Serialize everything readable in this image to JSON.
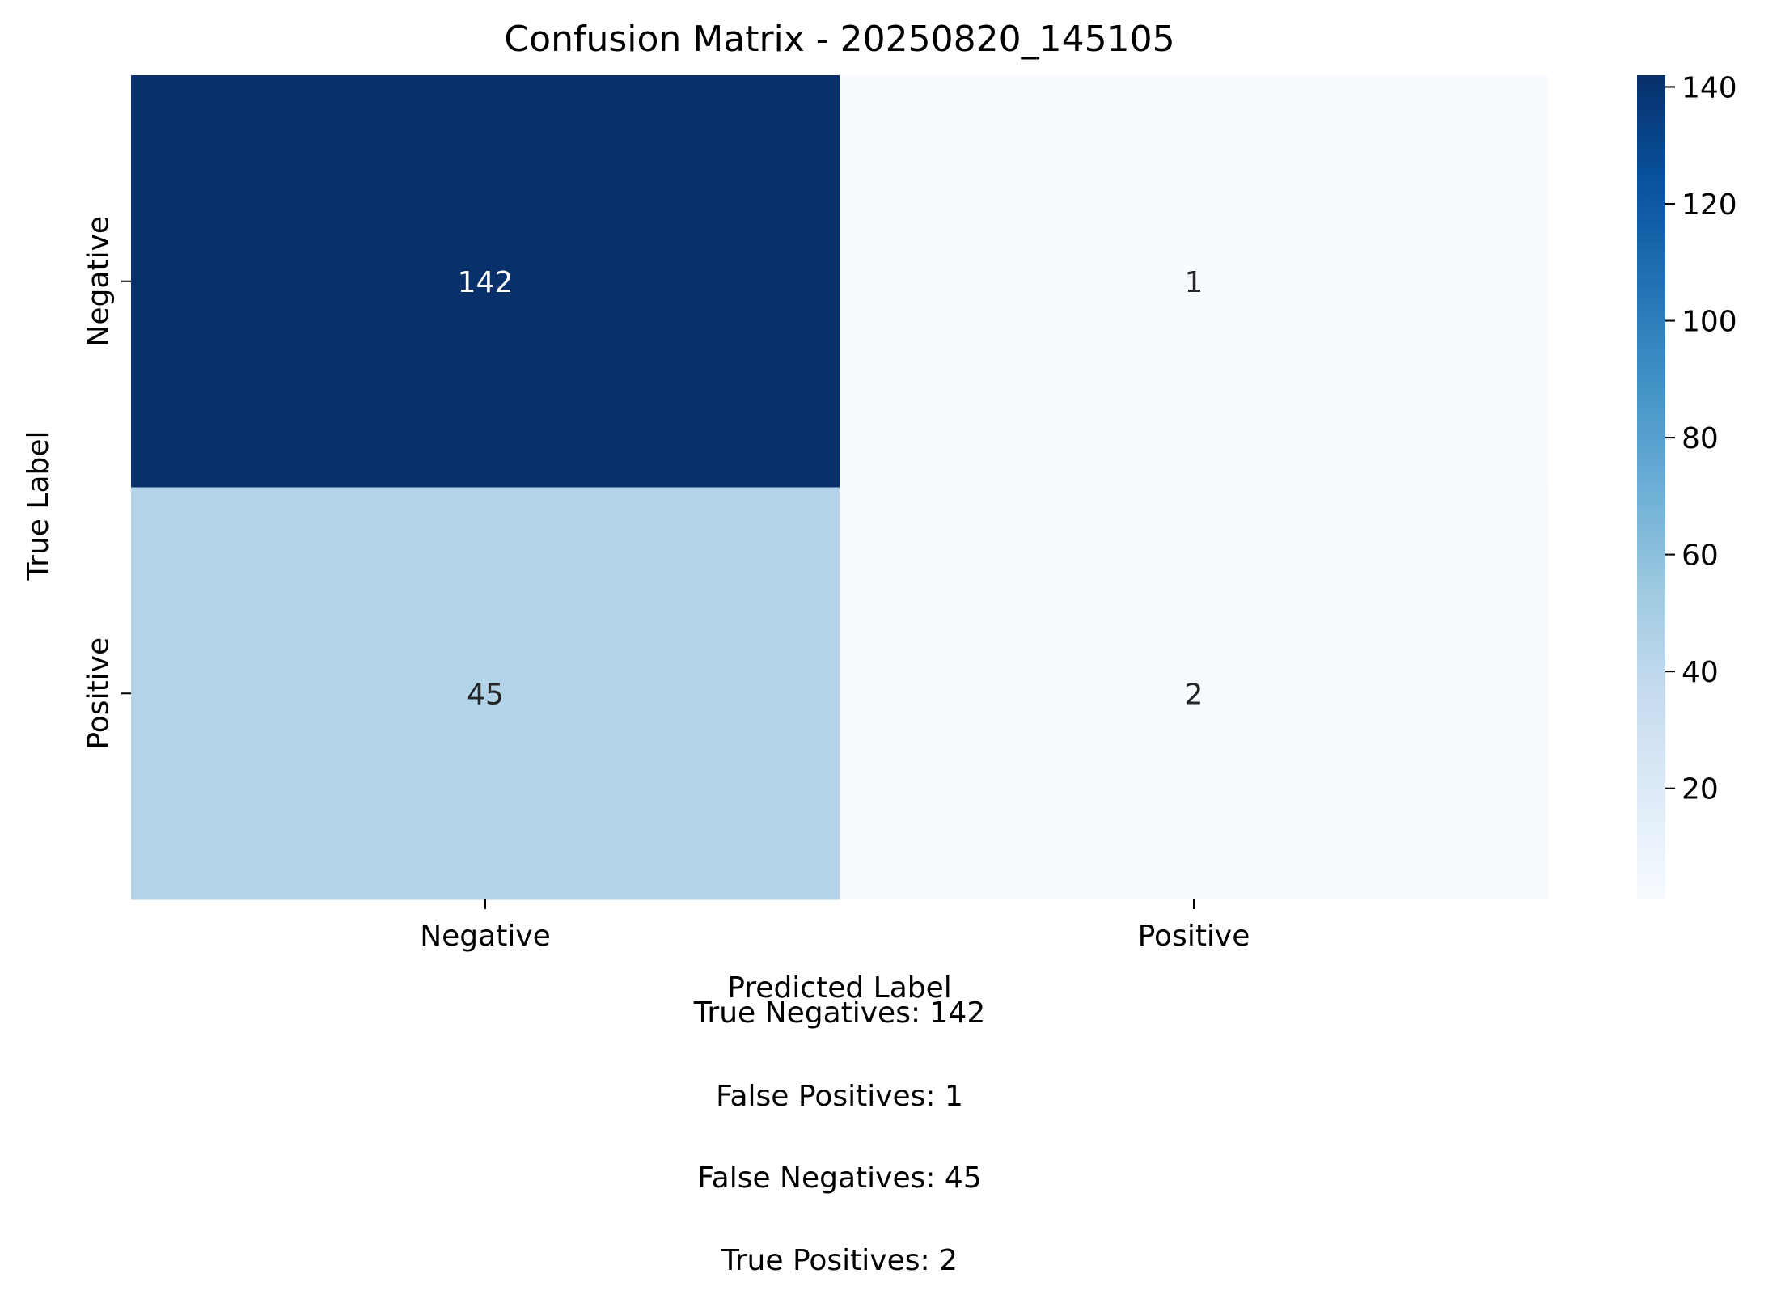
{
  "chart_data": {
    "type": "heatmap",
    "title": "Confusion Matrix - 20250820_145105",
    "xlabel": "Predicted Label",
    "ylabel": "True Label",
    "x_categories": [
      "Negative",
      "Positive"
    ],
    "y_categories": [
      "Negative",
      "Positive"
    ],
    "values": [
      [
        142,
        1
      ],
      [
        45,
        2
      ]
    ],
    "colormap": "Blues",
    "colorbar": {
      "vmin": 1,
      "vmax": 142,
      "ticks": [
        20,
        40,
        60,
        80,
        100,
        120,
        140
      ]
    },
    "annotation_colors": {
      "dark_cell": "#ffffff",
      "light_cell": "#262626"
    },
    "summary": [
      "True Negatives: 142",
      "False Positives: 1",
      "False Negatives: 45",
      "True Positives: 2"
    ]
  }
}
